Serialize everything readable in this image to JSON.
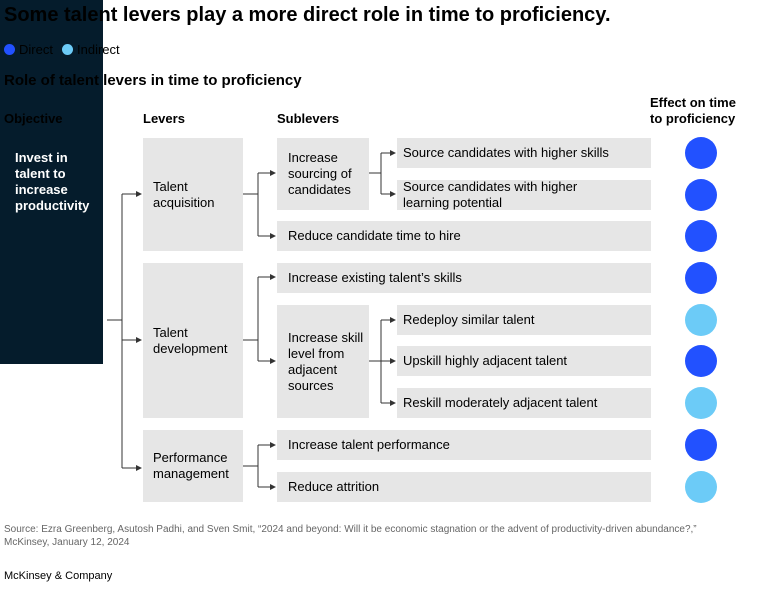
{
  "title": "Some talent levers play a more direct role in time to proficiency.",
  "legend": [
    {
      "label": "Direct",
      "color": "#2251ff"
    },
    {
      "label": "Indirect",
      "color": "#6ccbf7"
    }
  ],
  "subtitle": "Role of talent levers in time to proficiency",
  "columns": {
    "objective": "Objective",
    "levers": "Levers",
    "sublevers": "Sublevers",
    "effect": "Effect on time to proficiency"
  },
  "objective": "Invest in talent to increase productivity",
  "levers": [
    {
      "label": "Talent acquisition"
    },
    {
      "label": "Talent development"
    },
    {
      "label": "Performance management"
    }
  ],
  "sublevers": {
    "increase_sourcing": "Increase sourcing of candidates",
    "increase_skill_level": "Increase skill level from adjacent sources"
  },
  "rows": [
    {
      "label": "Source candidates with higher skills",
      "effect": "Direct"
    },
    {
      "label": "Source candidates with higher learning potential",
      "effect": "Direct"
    },
    {
      "label": "Reduce candidate time to hire",
      "effect": "Direct"
    },
    {
      "label": "Increase existing talent’s skills",
      "effect": "Direct"
    },
    {
      "label": "Redeploy similar talent",
      "effect": "Indirect"
    },
    {
      "label": "Upskill highly adjacent talent",
      "effect": "Direct"
    },
    {
      "label": "Reskill moderately adjacent talent",
      "effect": "Indirect"
    },
    {
      "label": "Increase talent performance",
      "effect": "Direct"
    },
    {
      "label": "Reduce attrition",
      "effect": "Indirect"
    }
  ],
  "source": "Source: Ezra Greenberg, Asutosh Padhi, and Sven Smit, “2024 and beyond: Will it be economic stagnation or the advent of productivity-driven abundance?,” McKinsey, January 12, 2024",
  "brand": "McKinsey & Company"
}
